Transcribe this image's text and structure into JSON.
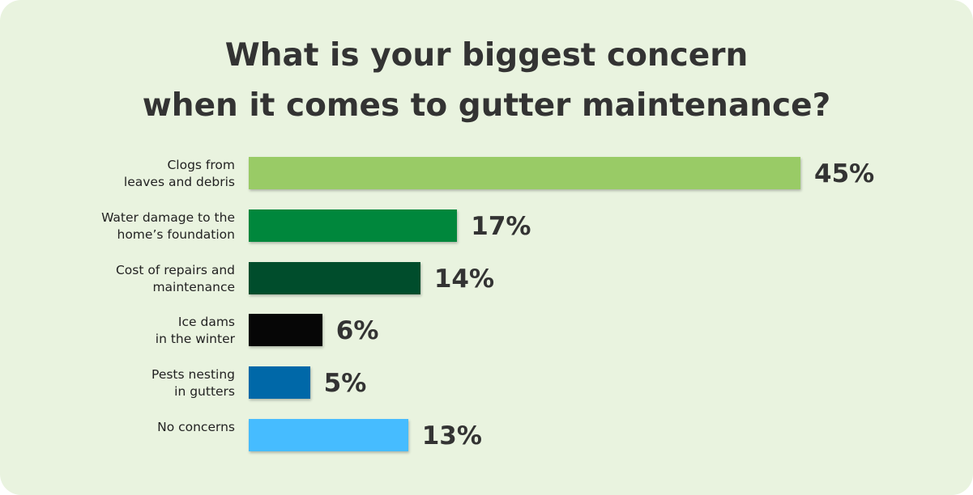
{
  "chart_data": {
    "type": "hbar",
    "title": "What is your biggest concern\nwhen it comes to gutter maintenance?",
    "categories": [
      "Clogs from\nleaves and debris",
      "Water damage to the\nhome’s foundation",
      "Cost of repairs and\nmaintenance",
      "Ice dams\nin the winter",
      "Pests nesting\nin gutters",
      "No concerns"
    ],
    "values": [
      45,
      17,
      14,
      6,
      5,
      13
    ],
    "value_labels": [
      "45%",
      "17%",
      "14%",
      "6%",
      "5%",
      "13%"
    ],
    "colors": [
      "#99cb66",
      "#00873c",
      "#004d2c",
      "#060606",
      "#0068a8",
      "#46bcff"
    ]
  }
}
